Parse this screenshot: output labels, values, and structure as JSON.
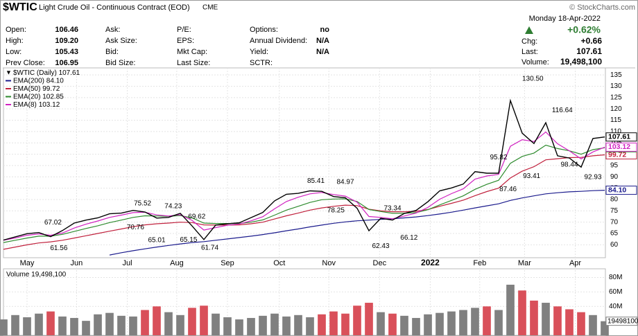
{
  "header": {
    "symbol": "$WTIC",
    "name": "Light Crude Oil - Continuous Contract (EOD)",
    "exchange": "CME",
    "copyright": "© StockCharts.com",
    "date": "Monday 18-Apr-2022",
    "change_pct": "+0.62%",
    "summary": [
      {
        "label": "Chg:",
        "value": "+0.66"
      },
      {
        "label": "Last:",
        "value": "107.61"
      },
      {
        "label": "Volume:",
        "value": "19,498,100"
      }
    ],
    "columns": [
      [
        {
          "label": "Open:",
          "value": "106.46"
        },
        {
          "label": "High:",
          "value": "109.20"
        },
        {
          "label": "Low:",
          "value": "105.43"
        },
        {
          "label": "Prev Close:",
          "value": "106.95"
        }
      ],
      [
        {
          "label": "Ask:"
        },
        {
          "label": "Ask Size:"
        },
        {
          "label": "Bid:"
        },
        {
          "label": "Bid Size:"
        }
      ],
      [
        {
          "label": "P/E:"
        },
        {
          "label": "EPS:"
        },
        {
          "label": "Mkt Cap:"
        },
        {
          "label": "Last Size:"
        }
      ],
      [
        {
          "label": "Options:",
          "value": "no"
        },
        {
          "label": "Annual Dividend:",
          "value": "N/A"
        },
        {
          "label": "Yield:",
          "value": "N/A"
        },
        {
          "label": "SCTR:"
        }
      ]
    ]
  },
  "chart_data": [
    {
      "type": "line",
      "xticks": [
        {
          "value": 2,
          "label": "May"
        },
        {
          "value": 6.2,
          "label": "Jun"
        },
        {
          "value": 10.5,
          "label": "Jul"
        },
        {
          "value": 14.7,
          "label": "Aug"
        },
        {
          "value": 19,
          "label": "Sep"
        },
        {
          "value": 23.4,
          "label": "Oct"
        },
        {
          "value": 27.6,
          "label": "Nov"
        },
        {
          "value": 31.9,
          "label": "Dec"
        },
        {
          "value": 36.2,
          "label": "2022"
        },
        {
          "value": 40.4,
          "label": "Feb"
        },
        {
          "value": 44.2,
          "label": "Mar"
        },
        {
          "value": 48.5,
          "label": "Apr"
        }
      ],
      "xlim": [
        0,
        51
      ],
      "ylim": [
        54.3,
        138.1
      ],
      "yticks": [
        60,
        65,
        70,
        75,
        80,
        85,
        90,
        95,
        100,
        105,
        110,
        115,
        120,
        125,
        130,
        135
      ],
      "grid": true,
      "series": [
        {
          "name": "$WTIC (Daily)",
          "last_label": "107.61",
          "color": "#000000",
          "values": [
            62.1,
            63.5,
            64.9,
            65.4,
            63.6,
            66.3,
            69.6,
            70.9,
            71.9,
            73.7,
            74,
            75.2,
            74.5,
            71.8,
            72.1,
            73.9,
            68.3,
            62.3,
            68.7,
            69.3,
            69.7,
            72,
            74.3,
            79.4,
            82.3,
            82.7,
            83.8,
            83.6,
            81.3,
            80.8,
            76.1,
            66.2,
            71.7,
            70.9,
            73.8,
            75.2,
            79,
            83.8,
            85.1,
            86.8,
            92.3,
            91.6,
            91.6,
            123.7,
            109.3,
            104.7,
            113.9,
            99.3,
            98.3,
            94.3,
            106.95,
            107.61
          ]
        },
        {
          "name": "EMA(200)",
          "last_label": "84.10",
          "color": "#1a1a8c",
          "values": [
            null,
            null,
            null,
            null,
            null,
            null,
            null,
            null,
            null,
            55.5,
            56.5,
            57.4,
            58.2,
            59,
            59.7,
            60.4,
            61,
            61.4,
            62,
            62.6,
            63.2,
            63.8,
            64.5,
            65.3,
            66.2,
            67,
            67.9,
            68.7,
            69.5,
            70.1,
            70.6,
            70.9,
            71.2,
            71.5,
            71.9,
            72.3,
            72.9,
            73.6,
            74.4,
            75.3,
            76.3,
            77.2,
            78.1,
            79.6,
            80.7,
            81.6,
            82.5,
            83,
            83.4,
            83.6,
            83.9,
            84.1
          ]
        },
        {
          "name": "EMA(50)",
          "last_label": "99.72",
          "color": "#c0203c",
          "values": [
            58,
            59,
            60,
            60.8,
            61.3,
            62,
            63,
            64,
            65,
            66,
            67,
            68,
            68.8,
            69.3,
            69.6,
            70,
            69.8,
            68.8,
            68.7,
            68.7,
            68.8,
            69.3,
            70,
            71.4,
            72.8,
            74,
            75.3,
            76.3,
            77,
            77.5,
            77.3,
            75.7,
            75,
            74.6,
            74.6,
            74.8,
            75.6,
            77,
            78.3,
            79.7,
            81.7,
            83.5,
            85,
            89.5,
            92.5,
            94.5,
            97.5,
            98,
            98.5,
            98.6,
            99.3,
            99.72
          ]
        },
        {
          "name": "EMA(20)",
          "last_label": "102.85",
          "color": "#2e8b2e",
          "values": [
            61,
            62,
            63,
            63.8,
            63.8,
            64.6,
            65.9,
            67.2,
            68.4,
            69.8,
            70.9,
            72.1,
            72.8,
            72.7,
            72.6,
            72.9,
            71.9,
            69.6,
            69.4,
            69.4,
            69.4,
            70,
            71,
            73.1,
            75.3,
            77,
            78.7,
            79.9,
            80.2,
            80.3,
            79.1,
            75.6,
            74.7,
            73.9,
            73.9,
            74.2,
            75.5,
            77.6,
            79.6,
            81.6,
            84.5,
            86.7,
            88.5,
            96,
            99,
            100.5,
            104,
            102.5,
            101.5,
            100,
            102,
            102.85
          ]
        },
        {
          "name": "EMA(8)",
          "last_label": "103.12",
          "color": "#d020c0",
          "values": [
            62,
            63,
            64.2,
            64.8,
            64.2,
            65.2,
            67.4,
            69.1,
            70.5,
            72.1,
            73.1,
            74.2,
            74.4,
            73.2,
            72.7,
            73.3,
            70.8,
            66.5,
            67.6,
            68.6,
            69.2,
            70.6,
            72.4,
            75.9,
            79.1,
            81,
            82.5,
            83.1,
            82.2,
            81.5,
            78.8,
            72.5,
            72.1,
            71.5,
            72.7,
            74,
            76.5,
            80.1,
            82.6,
            84.7,
            89,
            90.4,
            91.1,
            103.5,
            106.4,
            105.6,
            109.8,
            104.6,
            101.5,
            97.9,
            101,
            103.12
          ]
        }
      ],
      "annotations": [
        {
          "x": 4.2,
          "value": 67.02,
          "position": "above"
        },
        {
          "x": 4.7,
          "value": 61.56,
          "position": "below"
        },
        {
          "x": 11.8,
          "value": 75.52,
          "position": "above"
        },
        {
          "x": 11.2,
          "value": 70.76,
          "position": "below"
        },
        {
          "x": 13,
          "value": 65.01,
          "position": "below"
        },
        {
          "x": 14.4,
          "value": 74.23,
          "position": "above"
        },
        {
          "x": 16.4,
          "value": 69.62,
          "position": "above"
        },
        {
          "x": 15.7,
          "value": 65.15,
          "position": "below"
        },
        {
          "x": 17.5,
          "value": 61.74,
          "position": "below"
        },
        {
          "x": 26.5,
          "value": 85.41,
          "position": "above"
        },
        {
          "x": 29,
          "value": 84.97,
          "position": "above"
        },
        {
          "x": 28.2,
          "value": 78.25,
          "position": "below"
        },
        {
          "x": 33,
          "value": 73.34,
          "position": "above"
        },
        {
          "x": 32,
          "value": 62.43,
          "position": "below"
        },
        {
          "x": 34.4,
          "value": 66.12,
          "position": "below"
        },
        {
          "x": 42,
          "value": 95.82,
          "position": "above"
        },
        {
          "x": 42.8,
          "value": 87.46,
          "position": "below"
        },
        {
          "x": 44.9,
          "value": 130.5,
          "label": "130.50",
          "position": "above"
        },
        {
          "x": 47.4,
          "value": 116.64,
          "position": "above"
        },
        {
          "x": 44.8,
          "value": 93.41,
          "position": "below"
        },
        {
          "x": 48,
          "value": 98.44,
          "position": "below"
        },
        {
          "x": 50,
          "value": 92.93,
          "position": "below"
        }
      ]
    },
    {
      "type": "bar",
      "name": "Volume",
      "legend_label": "19,498,100",
      "last_label": "19498100",
      "up_color": "#808080",
      "down_color": "#d9505a",
      "ylim": [
        0,
        92000000
      ],
      "yticks": [
        {
          "value": 40000000,
          "label": "40M"
        },
        {
          "value": 60000000,
          "label": "60M"
        },
        {
          "value": 80000000,
          "label": "80M"
        }
      ],
      "values": [
        22000000,
        28000000,
        25000000,
        30000000,
        33000000,
        26000000,
        24000000,
        20000000,
        29000000,
        31000000,
        27000000,
        26000000,
        35000000,
        40000000,
        32000000,
        28000000,
        38000000,
        41000000,
        30000000,
        25000000,
        22000000,
        24000000,
        27000000,
        30000000,
        26000000,
        28000000,
        25000000,
        29000000,
        33000000,
        30000000,
        41000000,
        45000000,
        32000000,
        30000000,
        27000000,
        24000000,
        29000000,
        31000000,
        33000000,
        35000000,
        38000000,
        40000000,
        35000000,
        70000000,
        62000000,
        48000000,
        45000000,
        40000000,
        36000000,
        32000000,
        28000000,
        19498100
      ]
    }
  ]
}
